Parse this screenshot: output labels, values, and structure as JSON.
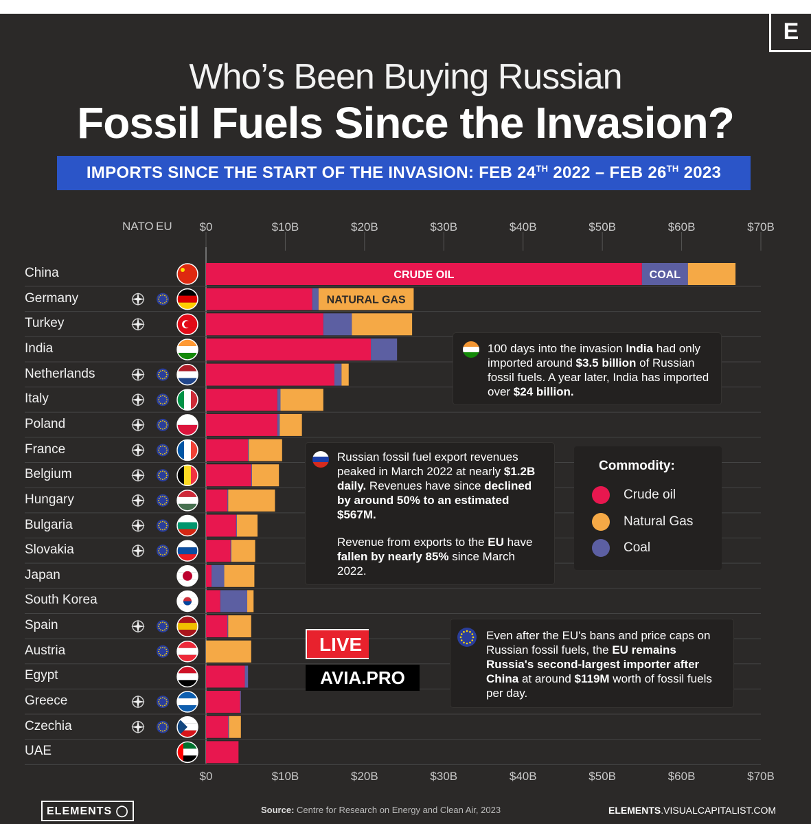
{
  "header": {
    "logo_letter": "E",
    "title_line1": "Who’s Been Buying Russian",
    "title_line2": "Fossil Fuels Since the Invasion?",
    "subtitle": "IMPORTS SINCE THE START OF THE INVASION:  FEB 24TH 2022 – FEB 26TH 2023"
  },
  "columns": {
    "nato": "NATO",
    "eu": "EU"
  },
  "colors": {
    "crude_oil": "#e8174f",
    "natural_gas": "#f5a946",
    "coal": "#5c5fa2",
    "background": "#2b2928",
    "banner": "#2b55c8"
  },
  "chart_data": {
    "type": "bar",
    "orientation": "horizontal",
    "stacked": true,
    "x_ticks": [
      "$0",
      "$10B",
      "$20B",
      "$30B",
      "$40B",
      "$50B",
      "$60B",
      "$70B"
    ],
    "xlim": [
      0,
      70
    ],
    "categories": [
      "China",
      "Germany",
      "Turkey",
      "India",
      "Netherlands",
      "Italy",
      "Poland",
      "France",
      "Belgium",
      "Hungary",
      "Bulgaria",
      "Slovakia",
      "Japan",
      "South Korea",
      "Spain",
      "Austria",
      "Egypt",
      "Greece",
      "Czechia",
      "UAE"
    ],
    "nato": [
      false,
      true,
      true,
      false,
      true,
      true,
      true,
      true,
      true,
      true,
      true,
      true,
      false,
      false,
      true,
      false,
      false,
      true,
      true,
      false
    ],
    "eu": [
      false,
      true,
      false,
      false,
      true,
      true,
      true,
      true,
      true,
      true,
      true,
      true,
      false,
      false,
      true,
      true,
      false,
      true,
      true,
      false
    ],
    "series": [
      {
        "name": "Crude oil",
        "values": [
          55.0,
          13.4,
          14.8,
          20.8,
          16.2,
          9.0,
          9.0,
          5.3,
          5.7,
          2.7,
          3.8,
          3.1,
          0.7,
          1.8,
          2.7,
          0.0,
          4.9,
          4.3,
          2.8,
          4.1
        ]
      },
      {
        "name": "Coal",
        "values": [
          5.8,
          0.8,
          3.6,
          3.3,
          0.9,
          0.4,
          0.3,
          0.1,
          0.1,
          0.1,
          0.1,
          0.1,
          1.6,
          3.4,
          0.1,
          0.0,
          0.4,
          0.1,
          0.1,
          0.0
        ]
      },
      {
        "name": "Natural Gas",
        "values": [
          6.0,
          12.0,
          7.6,
          0.0,
          0.9,
          5.4,
          2.8,
          4.2,
          3.4,
          5.9,
          2.6,
          3.0,
          3.8,
          0.8,
          2.9,
          5.7,
          0.0,
          0.0,
          1.5,
          0.0
        ]
      }
    ],
    "bar_labels": {
      "crude_oil": "CRUDE OIL",
      "coal": "COAL",
      "natural_gas": "NATURAL GAS"
    }
  },
  "notes": {
    "india_note": "100 days into the invasion <b>India</b> had only imported around <b>$3.5 billion</b> of Russian fossil fuels. A year later, India has imported over <b>$24 billion.</b>",
    "russia_note_1": "Russian fossil fuel export revenues peaked in March 2022 at nearly <b>$1.2B daily.</b> Revenues have since <b>declined by around 50% to an estimated $567M.</b>",
    "russia_note_2": "Revenue from exports to the <b>EU</b> have <b>fallen by nearly 85%</b> since March 2022.",
    "eu_note": "Even after the EU's bans and price caps on Russian fossil fuels, the <b>EU remains Russia's second-largest importer after China</b> at around <b>$119M</b> worth of fossil fuels per day."
  },
  "legend": {
    "title": "Commodity:",
    "items": [
      "Crude oil",
      "Natural Gas",
      "Coal"
    ]
  },
  "watermark": {
    "top": "LIVE",
    "bottom": "AVIA.PRO"
  },
  "footer": {
    "brand": "ELEMENTS",
    "source_label": "Source:",
    "source_text": "Centre for Research on Energy and Clean Air, 2023",
    "site_bold": "ELEMENTS",
    "site_rest": ".VISUALCAPITALIST.COM"
  }
}
